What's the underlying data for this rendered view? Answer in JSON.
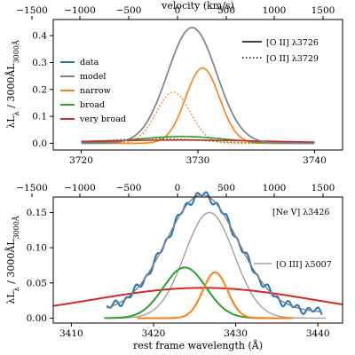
{
  "chart_data": [
    {
      "type": "line",
      "panel": "top",
      "top_axis": {
        "label": "velocity (km/s)",
        "ticks": [
          -1500,
          -1000,
          -500,
          0,
          500,
          1000,
          1500
        ]
      },
      "xlim": [
        3717.6,
        3742.4
      ],
      "ylim": [
        -0.025,
        0.46
      ],
      "xticks": [
        3720,
        3730,
        3740
      ],
      "yticks": [
        0.0,
        0.1,
        0.2,
        0.3,
        0.4
      ],
      "ylabel": "λL_λ / 3000Å L_3000Å",
      "legend_left": [
        "data",
        "model",
        "narrow",
        "broad",
        "very broad"
      ],
      "legend_right": [
        {
          "label": "[O II] λ3726",
          "style": "solid"
        },
        {
          "label": "[O II] λ3729",
          "style": "dotted"
        }
      ],
      "colors": {
        "data": "#1f77b4",
        "model": "#7f7f8f",
        "narrow": "#ff7f0e",
        "broad": "#2ca02c",
        "very broad": "#d62728"
      },
      "series": [
        {
          "name": "model",
          "center": 3729.5,
          "amp": 0.43,
          "sigma": 2.1
        },
        {
          "name": "narrow",
          "style": "solid",
          "center": 3730.4,
          "amp": 0.28,
          "sigma": 1.45
        },
        {
          "name": "narrow",
          "style": "dotted",
          "center": 3727.9,
          "amp": 0.19,
          "sigma": 1.45
        },
        {
          "name": "broad",
          "style": "solid",
          "center": 3728.6,
          "amp": 0.025,
          "sigma": 3.8
        },
        {
          "name": "broad",
          "style": "dotted",
          "center": 3726.2,
          "amp": 0.018,
          "sigma": 3.8
        },
        {
          "name": "very broad",
          "style": "solid",
          "center": 3728.5,
          "amp": 0.012,
          "sigma": 8.0
        }
      ]
    },
    {
      "type": "line",
      "panel": "bottom",
      "top_axis": {
        "label": "",
        "ticks": [
          -1500,
          -1000,
          -500,
          0,
          500,
          1000,
          1500
        ]
      },
      "xlim": [
        3407.8,
        3443.0
      ],
      "ylim": [
        -0.007,
        0.172
      ],
      "xticks": [
        3410,
        3420,
        3430,
        3440
      ],
      "yticks": [
        0.0,
        0.05,
        0.1,
        0.15
      ],
      "xlabel": "rest frame wavelength (Å)",
      "ylabel": "λL_λ / 3000Å L_3000Å",
      "annotation": "[Ne V] λ3426",
      "legend": [
        {
          "label": "[O III] λ5007",
          "color": "#a0a0a0"
        }
      ],
      "colors": {
        "data": "#1f77b4",
        "model": "#7f7f8f",
        "narrow": "#ff7f0e",
        "broad": "#2ca02c",
        "very broad": "#d62728"
      },
      "series": [
        {
          "name": "model",
          "center": 3425.9,
          "amp": 0.16,
          "sigma": 4.3
        },
        {
          "name": "narrow",
          "center": 3427.5,
          "amp": 0.065,
          "sigma": 1.5
        },
        {
          "name": "broad",
          "center": 3423.8,
          "amp": 0.072,
          "sigma": 2.6
        },
        {
          "name": "very broad",
          "center": 3426.0,
          "amp": 0.043,
          "sigma": 13.5
        },
        {
          "name": "[O III] λ5007",
          "center": 3426.8,
          "amp": 0.15,
          "sigma": 3.0,
          "xrange": [
            3415,
            3441
          ]
        }
      ]
    }
  ]
}
